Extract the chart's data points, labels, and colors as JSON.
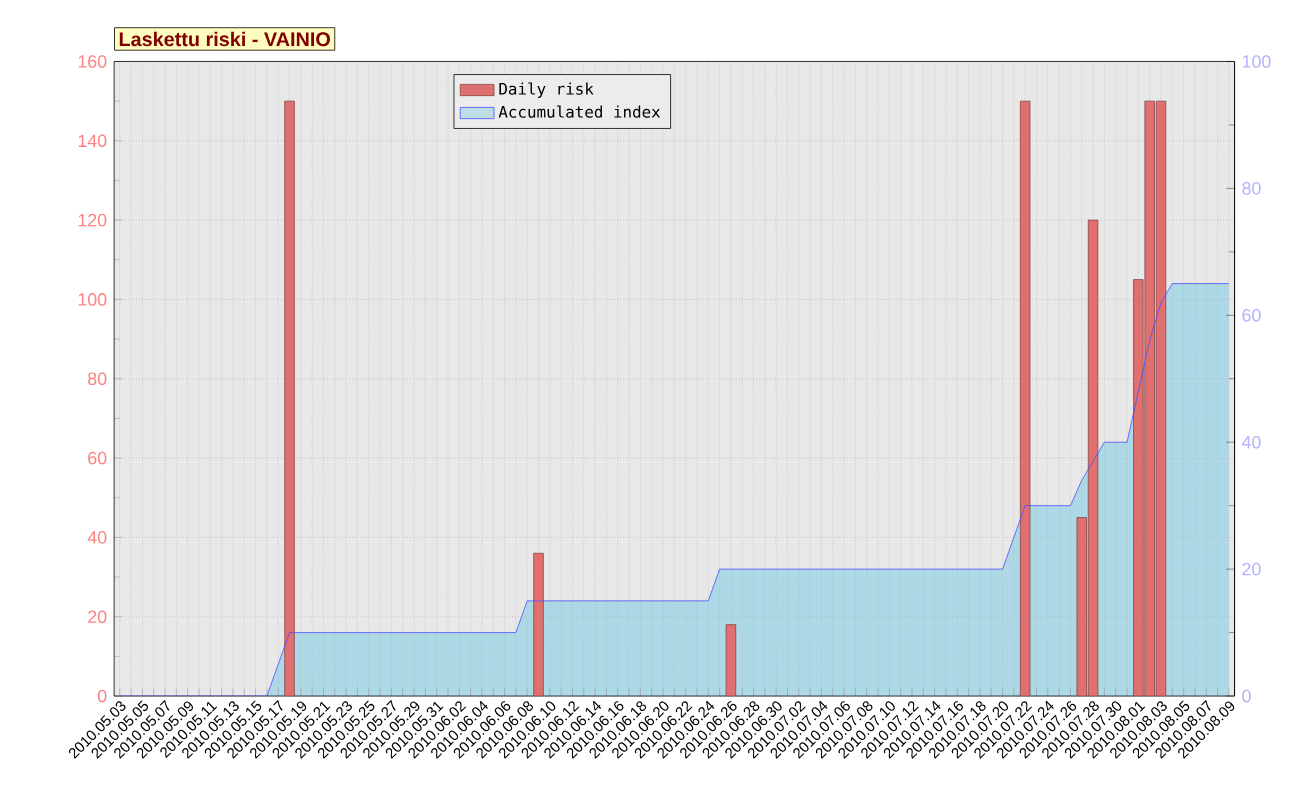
{
  "chart_data": {
    "type": "bar",
    "title": "Laskettu riski - VAINIO",
    "categories": [
      "2010.05.03",
      null,
      "2010.05.05",
      null,
      "2010.05.07",
      null,
      "2010.05.09",
      null,
      "2010.05.11",
      null,
      "2010.05.13",
      null,
      "2010.05.15",
      null,
      "2010.05.17",
      null,
      "2010.05.19",
      null,
      "2010.05.21",
      null,
      "2010.05.23",
      null,
      "2010.05.25",
      null,
      "2010.05.27",
      null,
      "2010.05.29",
      null,
      "2010.05.31",
      null,
      "2010.06.02",
      null,
      "2010.06.04",
      null,
      "2010.06.06",
      null,
      "2010.06.08",
      null,
      "2010.06.10",
      null,
      "2010.06.12",
      null,
      "2010.06.14",
      null,
      "2010.06.16",
      null,
      "2010.06.18",
      null,
      "2010.06.20",
      null,
      "2010.06.22",
      null,
      "2010.06.24",
      null,
      "2010.06.26",
      null,
      "2010.06.28",
      null,
      "2010.06.30",
      null,
      "2010.07.02",
      null,
      "2010.07.04",
      null,
      "2010.07.06",
      null,
      "2010.07.08",
      null,
      "2010.07.10",
      null,
      "2010.07.12",
      null,
      "2010.07.14",
      null,
      "2010.07.16",
      null,
      "2010.07.18",
      null,
      "2010.07.20",
      null,
      "2010.07.22",
      null,
      "2010.07.24",
      null,
      "2010.07.26",
      null,
      "2010.07.28",
      null,
      "2010.07.30",
      null,
      "2010.08.01",
      null,
      "2010.08.03",
      null,
      "2010.08.05",
      null,
      "2010.08.07",
      null,
      "2010.08.09"
    ],
    "series": [
      {
        "name": "Daily risk",
        "color": "#e07070",
        "values": [
          null,
          null,
          null,
          null,
          null,
          null,
          null,
          null,
          null,
          null,
          null,
          null,
          null,
          null,
          null,
          150,
          null,
          null,
          null,
          null,
          null,
          null,
          null,
          null,
          null,
          null,
          null,
          null,
          null,
          null,
          null,
          null,
          null,
          null,
          null,
          null,
          null,
          36,
          null,
          null,
          null,
          null,
          null,
          null,
          null,
          null,
          null,
          null,
          null,
          null,
          null,
          null,
          null,
          null,
          18,
          null,
          null,
          null,
          null,
          null,
          null,
          null,
          null,
          null,
          null,
          null,
          null,
          null,
          null,
          null,
          null,
          null,
          null,
          null,
          null,
          null,
          null,
          null,
          null,
          null,
          150,
          null,
          null,
          null,
          null,
          45,
          120,
          null,
          null,
          null,
          105,
          150,
          150,
          null,
          null,
          null,
          null,
          null,
          null
        ]
      },
      {
        "name": "Accumulated index",
        "type": "area",
        "axis": "y2",
        "color": "#add8e6",
        "values": [
          0,
          0,
          0,
          0,
          0,
          0,
          0,
          0,
          0,
          0,
          0,
          0,
          0,
          0,
          5,
          10,
          10,
          10,
          10,
          10,
          10,
          10,
          10,
          10,
          10,
          10,
          10,
          10,
          10,
          10,
          10,
          10,
          10,
          10,
          10,
          10,
          15,
          15,
          15,
          15,
          15,
          15,
          15,
          15,
          15,
          15,
          15,
          15,
          15,
          15,
          15,
          15,
          15,
          20,
          20,
          20,
          20,
          20,
          20,
          20,
          20,
          20,
          20,
          20,
          20,
          20,
          20,
          20,
          20,
          20,
          20,
          20,
          20,
          20,
          20,
          20,
          20,
          20,
          20,
          25,
          30,
          30,
          30,
          30,
          30,
          34,
          37,
          40,
          40,
          40,
          48,
          56,
          62,
          65,
          65,
          65,
          65,
          65,
          65
        ]
      }
    ],
    "ylim": [
      0,
      160
    ],
    "yticks": [
      0,
      20,
      40,
      60,
      80,
      100,
      120,
      140,
      160
    ],
    "y2lim": [
      0,
      100
    ],
    "y2ticks": [
      0,
      20,
      40,
      60,
      80,
      100
    ],
    "grid": true,
    "legend": "top"
  }
}
